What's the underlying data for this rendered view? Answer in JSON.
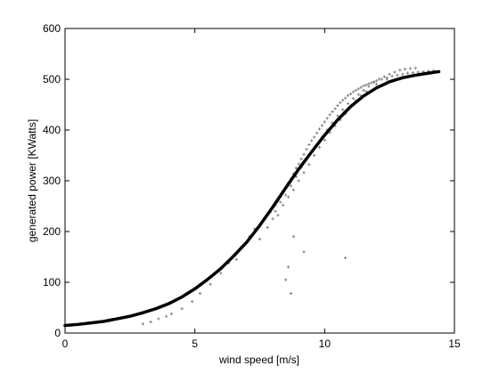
{
  "chart_data": {
    "type": "scatter",
    "title": "",
    "xlabel": "wind speed [m/s]",
    "ylabel": "generated power [KWatts]",
    "xlim": [
      0,
      15
    ],
    "ylim": [
      0,
      600
    ],
    "xticks": [
      0,
      5,
      10,
      15
    ],
    "yticks": [
      0,
      100,
      200,
      300,
      400,
      500,
      600
    ],
    "grid": false,
    "legend": "none",
    "series": [
      {
        "kind": "scatter",
        "marker": "+",
        "color": "#808080",
        "x": [
          3.0,
          3.3,
          3.6,
          3.9,
          4.1,
          4.5,
          4.9,
          5.2,
          5.6,
          6.0,
          6.3,
          6.5,
          6.8,
          7.1,
          7.3,
          7.5,
          7.7,
          7.9,
          8.0,
          8.1,
          8.2,
          8.3,
          8.4,
          8.5,
          8.6,
          8.7,
          8.8,
          8.9,
          9.0,
          9.1,
          9.2,
          9.3,
          9.4,
          9.5,
          9.6,
          9.7,
          9.8,
          9.9,
          10.0,
          10.1,
          10.2,
          10.3,
          10.4,
          10.5,
          10.6,
          10.7,
          10.8,
          10.9,
          11.0,
          11.1,
          11.2,
          11.3,
          11.4,
          11.5,
          11.6,
          11.7,
          11.8,
          11.9,
          12.0,
          12.2,
          12.4,
          12.6,
          12.8,
          13.0,
          13.2,
          13.4,
          13.6,
          13.8,
          14.0,
          14.2,
          8.0,
          8.2,
          8.4,
          8.6,
          8.8,
          9.0,
          9.2,
          9.4,
          9.6,
          9.8,
          10.0,
          10.2,
          10.4,
          10.6,
          10.8,
          11.0,
          11.2,
          11.4,
          11.6,
          12.0,
          12.4,
          7.8,
          8.1,
          8.3,
          8.5,
          8.7,
          8.9,
          9.1,
          9.3,
          9.5,
          9.7,
          9.9,
          10.1,
          10.3,
          10.5,
          10.7,
          10.9,
          11.1,
          11.3,
          11.5,
          11.7,
          11.9,
          12.1,
          12.3,
          12.5,
          12.7,
          12.9,
          13.1,
          13.3,
          13.5,
          8.7,
          8.8,
          10.8,
          8.6,
          7.5,
          6.6,
          9.2,
          8.5
        ],
        "y": [
          18,
          22,
          28,
          33,
          38,
          48,
          62,
          78,
          96,
          118,
          138,
          152,
          170,
          190,
          205,
          210,
          225,
          238,
          246,
          252,
          260,
          268,
          276,
          286,
          296,
          304,
          314,
          325,
          333,
          343,
          352,
          362,
          371,
          379,
          386,
          394,
          402,
          409,
          416,
          423,
          430,
          436,
          442,
          448,
          454,
          459,
          463,
          468,
          471,
          475,
          478,
          481,
          484,
          487,
          489,
          491,
          493,
          495,
          497,
          500,
          503,
          506,
          508,
          510,
          512,
          513,
          514,
          515,
          516,
          517,
          225,
          232,
          252,
          268,
          282,
          300,
          316,
          332,
          350,
          366,
          380,
          395,
          408,
          420,
          432,
          446,
          458,
          468,
          476,
          490,
          500,
          208,
          240,
          258,
          272,
          290,
          308,
          326,
          342,
          358,
          372,
          386,
          400,
          414,
          428,
          440,
          452,
          462,
          470,
          478,
          486,
          494,
          500,
          505,
          510,
          514,
          518,
          520,
          521,
          522,
          78,
          190,
          148,
          130,
          185,
          145,
          160,
          105
        ]
      },
      {
        "kind": "line",
        "color": "#000000",
        "x": [
          0,
          0.5,
          1,
          1.5,
          2,
          2.5,
          3,
          3.5,
          4,
          4.5,
          5,
          5.5,
          6,
          6.5,
          7,
          7.5,
          8,
          8.5,
          9,
          9.5,
          10,
          10.5,
          11,
          11.5,
          12,
          12.5,
          13,
          13.5,
          14,
          14.4
        ],
        "y": [
          15,
          17,
          20,
          23,
          28,
          33,
          40,
          48,
          58,
          71,
          87,
          106,
          127,
          152,
          179,
          212,
          248,
          286,
          323,
          357,
          390,
          420,
          446,
          467,
          483,
          495,
          503,
          508,
          512,
          515
        ]
      }
    ]
  }
}
